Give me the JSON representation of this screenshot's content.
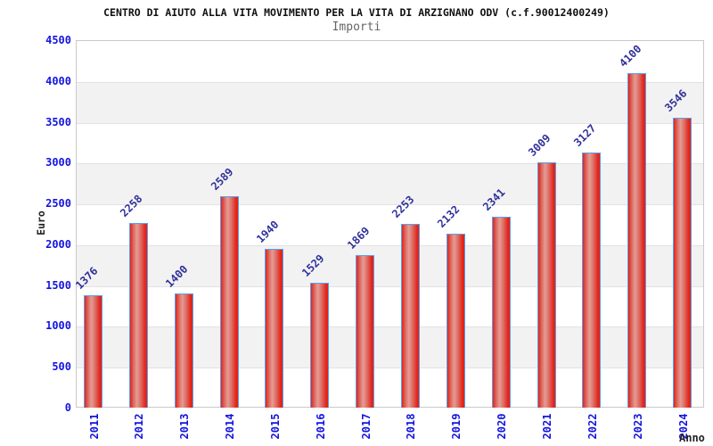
{
  "header": {
    "title": "CENTRO DI AIUTO ALLA VITA MOVIMENTO PER LA VITA DI ARZIGNANO ODV (c.f.90012400249)",
    "subtitle": "Importi"
  },
  "chart_data": {
    "type": "bar",
    "title": "CENTRO DI AIUTO ALLA VITA MOVIMENTO PER LA VITA DI ARZIGNANO ODV (c.f.90012400249)",
    "subtitle": "Importi",
    "xlabel": "Anno",
    "ylabel": "Euro",
    "categories": [
      "2011",
      "2012",
      "2013",
      "2014",
      "2015",
      "2016",
      "2017",
      "2018",
      "2019",
      "2020",
      "2021",
      "2022",
      "2023",
      "2024"
    ],
    "values": [
      1376,
      2258,
      1400,
      2589,
      1940,
      1529,
      1869,
      2253,
      2132,
      2341,
      3009,
      3127,
      4100,
      3546
    ],
    "ylim": [
      0,
      4500
    ],
    "ytick_step": 500,
    "ytick_labels": [
      "0",
      "500",
      "1000",
      "1500",
      "2000",
      "2500",
      "3000",
      "3500",
      "4000",
      "4500"
    ],
    "grid": "horizontal",
    "legend": "none",
    "band_colors": [
      "#ffffff",
      "#f2f2f2"
    ],
    "bar_border_color": "#55a1f0",
    "bar_color": "#e32419",
    "tick_label_color": "#1414e0",
    "value_label_color": "#30309a"
  }
}
